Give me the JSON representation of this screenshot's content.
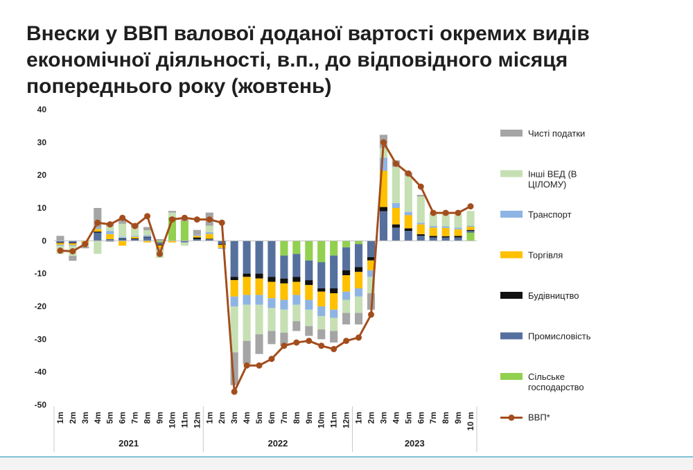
{
  "title_lines": [
    "Внески у ВВП валової доданої вартості окремих видів",
    "економічної діяльності, в.п., до відповідного місяця",
    "попереднього року (жовтень)"
  ],
  "chart_data": {
    "type": "bar",
    "stacked": true,
    "ylim": [
      -50,
      40
    ],
    "yticks": [
      40,
      30,
      20,
      10,
      0,
      -10,
      -20,
      -30,
      -40,
      -50
    ],
    "categories": [
      "1m",
      "2m",
      "3m",
      "4m",
      "5m",
      "6m",
      "7m",
      "8m",
      "9m",
      "10m",
      "11m",
      "12m",
      "1m",
      "2m",
      "3m",
      "4m",
      "5m",
      "6m",
      "7m",
      "8m",
      "9m",
      "10m",
      "11m",
      "12m",
      "1m",
      "2m",
      "3m",
      "4m",
      "5m",
      "6m",
      "7m",
      "8m",
      "9m",
      "10 m"
    ],
    "year_groups": [
      {
        "label": "2021",
        "count": 12
      },
      {
        "label": "2022",
        "count": 12
      },
      {
        "label": "2023",
        "count": 10
      }
    ],
    "series": [
      {
        "name": "Сільське господарство",
        "color": "#92d050",
        "values": [
          0,
          0,
          0,
          0,
          0,
          0,
          0,
          0,
          -0.5,
          7,
          6,
          0,
          0,
          0,
          0,
          0,
          0,
          0,
          -4.5,
          -4,
          -6,
          -6.5,
          -4.5,
          -2,
          -1,
          0,
          0,
          0,
          0,
          0,
          0,
          0,
          0,
          2.5
        ]
      },
      {
        "name": "Промисловість",
        "color": "#56709e",
        "values": [
          -0.5,
          -0.6,
          0,
          2.5,
          0.5,
          0.5,
          0.5,
          1,
          -0.7,
          0,
          -0.5,
          0.5,
          0.5,
          -1,
          -11,
          -10,
          -10,
          -11,
          -7,
          -7,
          -6,
          -8,
          -10,
          -7,
          -7,
          -5,
          9,
          4,
          3,
          1.5,
          1,
          1,
          1,
          0.5
        ]
      },
      {
        "name": "Будівництво",
        "color": "#111111",
        "values": [
          -0.2,
          -0.2,
          0,
          0.3,
          -0.2,
          0.2,
          0.2,
          0.2,
          -0.2,
          0.1,
          0,
          0.5,
          0.1,
          -0.2,
          -1,
          -1,
          -1.5,
          -1.5,
          -1.5,
          -1.5,
          -1.5,
          -1,
          -1.5,
          -1.5,
          -1.5,
          -1,
          1.3,
          1,
          0.8,
          0.5,
          0.5,
          0.4,
          0.5,
          0.3
        ]
      },
      {
        "name": "Торгівля",
        "color": "#ffc000",
        "values": [
          -0.5,
          -0.5,
          -0.5,
          0.8,
          1.5,
          -1.5,
          0.5,
          -0.5,
          -1,
          -0.5,
          0,
          0.5,
          1.5,
          -1,
          -5,
          -5.5,
          -5,
          -5,
          -5,
          -4,
          -4.5,
          -4.5,
          -5,
          -5,
          -5,
          -3,
          11,
          5,
          4,
          3,
          2.5,
          2.5,
          2,
          1
        ]
      },
      {
        "name": "Транспорт",
        "color": "#8eb4e3",
        "values": [
          -0.3,
          -0.3,
          -0.3,
          0.4,
          1,
          0.5,
          0.3,
          0.5,
          -0.3,
          0,
          0,
          0.3,
          0.5,
          -0.3,
          -3,
          -3,
          -3,
          -3,
          -3,
          -3,
          -3,
          -3,
          -2.5,
          -2.5,
          -2.5,
          -2,
          4,
          1.5,
          1,
          0.5,
          0.5,
          0.5,
          0.5,
          0.3
        ]
      },
      {
        "name": "Інші ВЕД (В ЦІЛОМУ)",
        "color": "#c6e0b4",
        "values": [
          -2.5,
          -3,
          -1,
          -4,
          1.5,
          4,
          2.5,
          1.5,
          -2.5,
          1.5,
          -1,
          0,
          2,
          0,
          -14,
          -11,
          -9,
          -7,
          -7,
          -5,
          -5,
          -4,
          -4,
          -4,
          -5,
          -5,
          3,
          11,
          11,
          8,
          4,
          4,
          4,
          4.5
        ]
      },
      {
        "name": "Чисті податки",
        "color": "#a5a5a5",
        "values": [
          1.5,
          -1.5,
          -0.5,
          6,
          1,
          1.5,
          1,
          1,
          0.5,
          0.5,
          0.5,
          1.5,
          4,
          0,
          -10,
          -7,
          -6,
          -4,
          -4,
          -3,
          -3,
          -3,
          -3.5,
          -3.5,
          -3.5,
          -5,
          4,
          2,
          1,
          0.5,
          0,
          0,
          0,
          0
        ]
      }
    ],
    "line": {
      "name": "ВВП*",
      "color": "#a34d1d",
      "values": [
        -3,
        -3.2,
        -1,
        5.5,
        5,
        7,
        4.5,
        7.5,
        -4,
        6.5,
        7,
        6.5,
        6.5,
        5.5,
        -46,
        -38,
        -38,
        -36,
        -32,
        -31,
        -30.5,
        -32,
        -33,
        -30.5,
        -29.5,
        -22.5,
        30,
        23.5,
        20.5,
        16.5,
        8.5,
        8.5,
        8.5,
        10.5
      ]
    },
    "legend_placement": "right",
    "legend_order": [
      "Чисті податки",
      "Інші ВЕД (В ЦІЛОМУ)",
      "Транспорт",
      "Торгівля",
      "Будівництво",
      "Промисловість",
      "Сільське господарство",
      "ВВП*"
    ]
  }
}
